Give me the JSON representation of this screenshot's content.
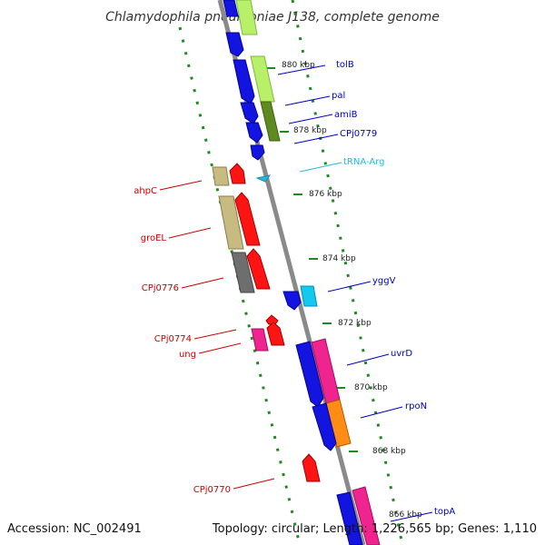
{
  "title": "Chlamydophila pneumoniae J138, complete genome",
  "footer": {
    "accession": "Accession: NC_002491",
    "summary": "Topology: circular; Length: 1,226,565 bp; Genes: 1,110"
  },
  "scale": {
    "unit": "kbp",
    "ticks": [
      "880 kbp",
      "878 kbp",
      "876 kbp",
      "874 kbp",
      "872 kbp",
      "870 kbp",
      "868 kbp",
      "866 kbp"
    ]
  },
  "colors": {
    "forward_label": "#0000cc",
    "reverse_label": "#cc0000",
    "trna_label": "#22bbdd",
    "backbone": "#8a8a8a",
    "tick": "#1f8a1f"
  },
  "genes": {
    "forward": [
      "tolB",
      "pal",
      "amiB",
      "CPj0779",
      "yggV",
      "uvrD",
      "rpoN",
      "topA"
    ],
    "trna": [
      "tRNA-Arg"
    ],
    "reverse": [
      "ahpC",
      "groEL",
      "CPj0776",
      "CPj0774",
      "ung",
      "CPj0770"
    ]
  }
}
